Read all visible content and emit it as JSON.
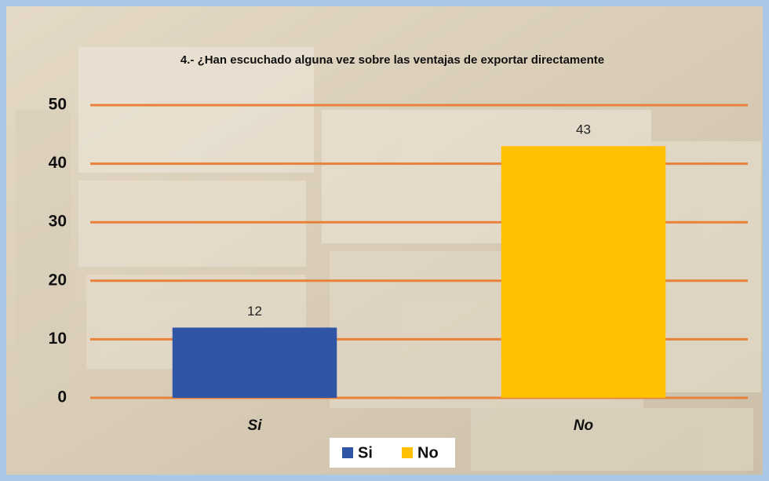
{
  "chart_data": {
    "type": "bar",
    "title": "4.- ¿Han escuchado alguna vez sobre las ventajas de exportar directamente",
    "categories": [
      "Si",
      "No"
    ],
    "values": [
      12,
      43
    ],
    "colors": [
      "#2f55a4",
      "#ffc000"
    ],
    "ylim": [
      0,
      50
    ],
    "yticks": [
      0,
      10,
      20,
      30,
      40,
      50
    ],
    "grid": true,
    "grid_color": "#e8823a",
    "legend": "bottom"
  }
}
